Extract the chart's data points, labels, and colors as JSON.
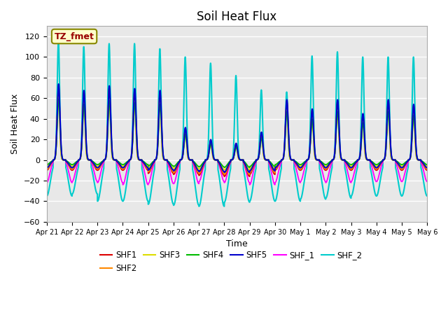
{
  "title": "Soil Heat Flux",
  "xlabel": "Time",
  "ylabel": "Soil Heat Flux",
  "ylim": [
    -60,
    130
  ],
  "yticks": [
    -60,
    -40,
    -20,
    0,
    20,
    40,
    60,
    80,
    100,
    120
  ],
  "xtick_labels": [
    "Apr 21",
    "Apr 22",
    "Apr 23",
    "Apr 24",
    "Apr 25",
    "Apr 26",
    "Apr 27",
    "Apr 28",
    "Apr 29",
    "Apr 30",
    "May 1",
    "May 2",
    "May 3",
    "May 4",
    "May 5",
    "May 6"
  ],
  "series": {
    "SHF1": {
      "color": "#dd0000",
      "lw": 1.3
    },
    "SHF2": {
      "color": "#ff8800",
      "lw": 1.3
    },
    "SHF3": {
      "color": "#dddd00",
      "lw": 1.3
    },
    "SHF4": {
      "color": "#00bb00",
      "lw": 1.3
    },
    "SHF5": {
      "color": "#0000cc",
      "lw": 1.5
    },
    "SHF_1": {
      "color": "#ff00ff",
      "lw": 1.3
    },
    "SHF_2": {
      "color": "#00cccc",
      "lw": 1.5
    }
  },
  "annotation_text": "TZ_fmet",
  "plot_bg_color": "#e8e8e8",
  "grid_color": "white",
  "title_fontsize": 12,
  "label_fontsize": 9,
  "tick_fontsize": 8,
  "day_peak_amps": [
    82,
    75,
    80,
    77,
    75,
    35,
    22,
    18,
    30,
    65,
    55,
    65,
    50,
    65,
    60
  ],
  "day_cyan_amps": [
    115,
    110,
    113,
    113,
    108,
    100,
    94,
    82,
    68,
    66,
    101,
    105,
    100,
    100,
    100
  ],
  "day_night_base": [
    -10,
    -10,
    -10,
    -10,
    -13,
    -14,
    -15,
    -16,
    -14,
    -10,
    -10,
    -10,
    -10,
    -10,
    -10
  ],
  "day_night_magenta": [
    -22,
    -21,
    -22,
    -24,
    -23,
    -23,
    -21,
    -22,
    -24,
    -22,
    -21,
    -22,
    -21,
    -21,
    -21
  ],
  "day_night_cyan": [
    -35,
    -33,
    -40,
    -40,
    -43,
    -44,
    -45,
    -41,
    -40,
    -40,
    -38,
    -37,
    -35,
    -35,
    -35
  ]
}
